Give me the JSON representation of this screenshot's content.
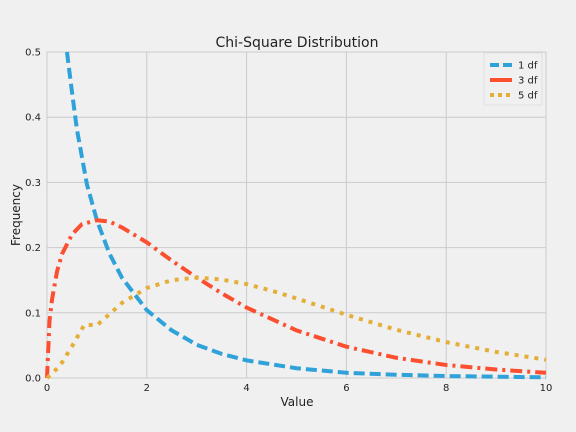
{
  "chart_data": {
    "type": "line",
    "title": "Chi-Square Distribution",
    "xlabel": "Value",
    "ylabel": "Frequency",
    "xlim": [
      0,
      10
    ],
    "ylim": [
      0,
      0.5
    ],
    "xticks": [
      0,
      2,
      4,
      6,
      8,
      10
    ],
    "yticks": [
      0.0,
      0.1,
      0.2,
      0.3,
      0.4,
      0.5
    ],
    "xtick_labels": [
      "0",
      "2",
      "4",
      "6",
      "8",
      "10"
    ],
    "ytick_labels": [
      "0.0",
      "0.1",
      "0.2",
      "0.3",
      "0.4",
      "0.5"
    ],
    "grid": true,
    "legend_position": "top-right",
    "series": [
      {
        "name": "1 df",
        "color": "#30a2da",
        "dash": "dashed",
        "x": [
          0.4,
          0.5,
          0.6,
          0.8,
          1.0,
          1.25,
          1.5,
          2.0,
          2.5,
          3.0,
          3.5,
          4.0,
          5.0,
          6.0,
          7.0,
          8.0,
          9.0,
          10.0
        ],
        "y": [
          0.5,
          0.439,
          0.381,
          0.297,
          0.242,
          0.191,
          0.154,
          0.104,
          0.073,
          0.051,
          0.037,
          0.027,
          0.015,
          0.008,
          0.005,
          0.003,
          0.002,
          0.001
        ]
      },
      {
        "name": "3 df",
        "color": "#fc4f30",
        "dash": "dash-dot",
        "x": [
          0.0,
          0.05,
          0.1,
          0.2,
          0.3,
          0.5,
          0.7,
          1.0,
          1.25,
          1.5,
          2.0,
          2.5,
          3.0,
          3.5,
          4.0,
          5.0,
          6.0,
          7.0,
          8.0,
          9.0,
          10.0
        ],
        "y": [
          0.0,
          0.087,
          0.12,
          0.163,
          0.19,
          0.22,
          0.236,
          0.242,
          0.24,
          0.231,
          0.208,
          0.18,
          0.154,
          0.13,
          0.108,
          0.073,
          0.048,
          0.031,
          0.02,
          0.013,
          0.008
        ]
      },
      {
        "name": "5 df",
        "color": "#e5ae38",
        "dash": "dotted",
        "x": [
          0.0,
          0.25,
          0.5,
          0.75,
          1.0,
          1.5,
          2.0,
          2.5,
          3.0,
          3.5,
          4.0,
          4.5,
          5.0,
          6.0,
          7.0,
          8.0,
          9.0,
          10.0
        ],
        "y": [
          0.0,
          0.0177,
          0.0484,
          0.0819,
          0.0807,
          0.115,
          0.138,
          0.15,
          0.154,
          0.151,
          0.144,
          0.134,
          0.122,
          0.097,
          0.074,
          0.055,
          0.04,
          0.028
        ]
      }
    ]
  }
}
